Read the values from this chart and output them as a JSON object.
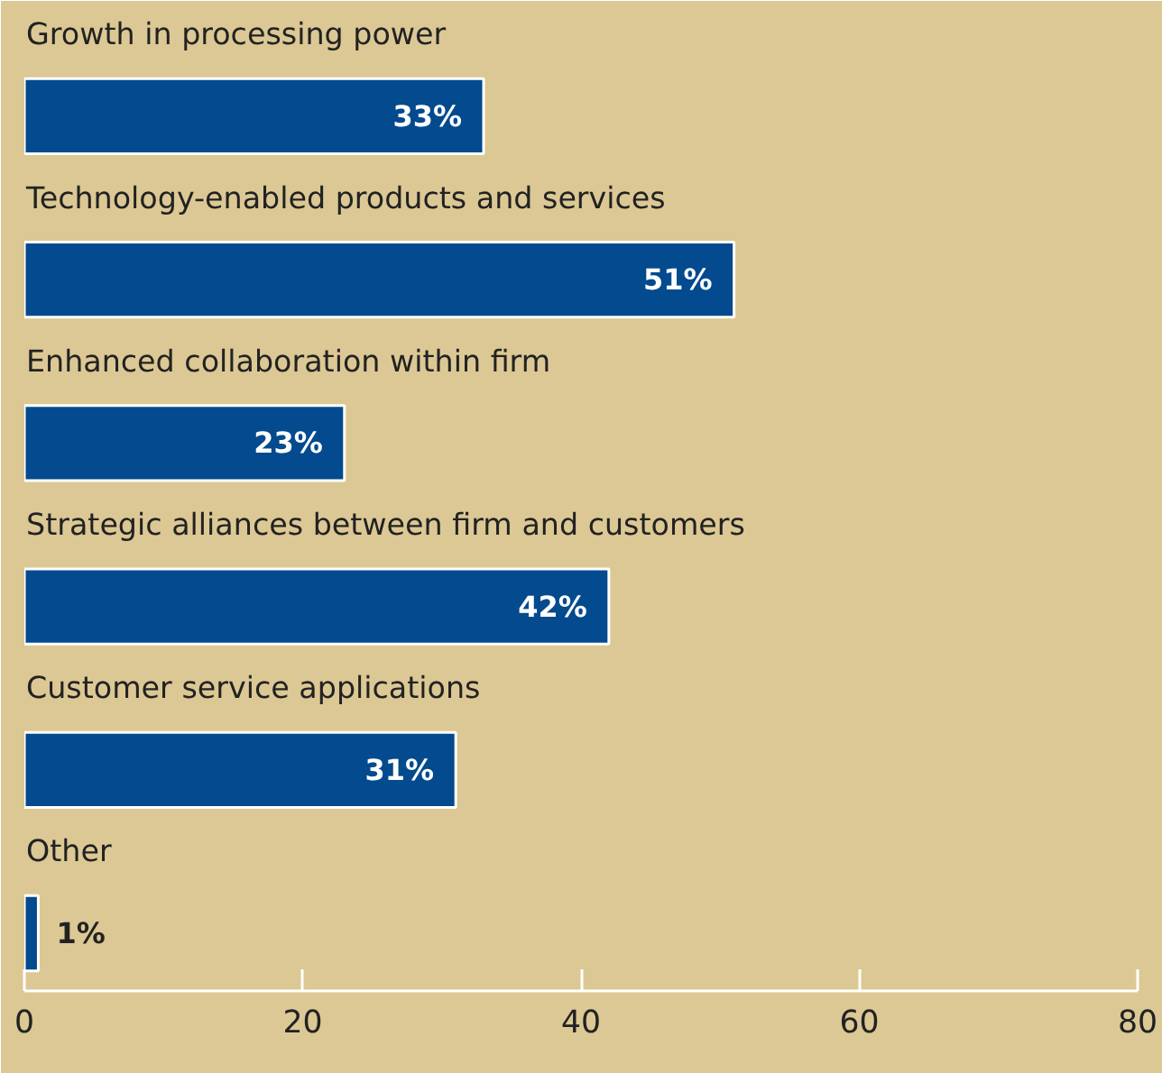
{
  "chart_data": {
    "type": "bar",
    "orientation": "horizontal",
    "categories": [
      "Growth in processing power",
      "Technology-enabled products and services",
      "Enhanced collaboration within firm",
      "Strategic alliances between firm and customers",
      "Customer service applications",
      "Other"
    ],
    "values": [
      33,
      51,
      23,
      42,
      31,
      1
    ],
    "value_labels": [
      "33%",
      "51%",
      "23%",
      "42%",
      "31%",
      "1%"
    ],
    "color": "#034a8e",
    "xlim": [
      0,
      80
    ],
    "xticks": [
      0,
      20,
      40,
      60,
      80
    ],
    "grid": false
  }
}
